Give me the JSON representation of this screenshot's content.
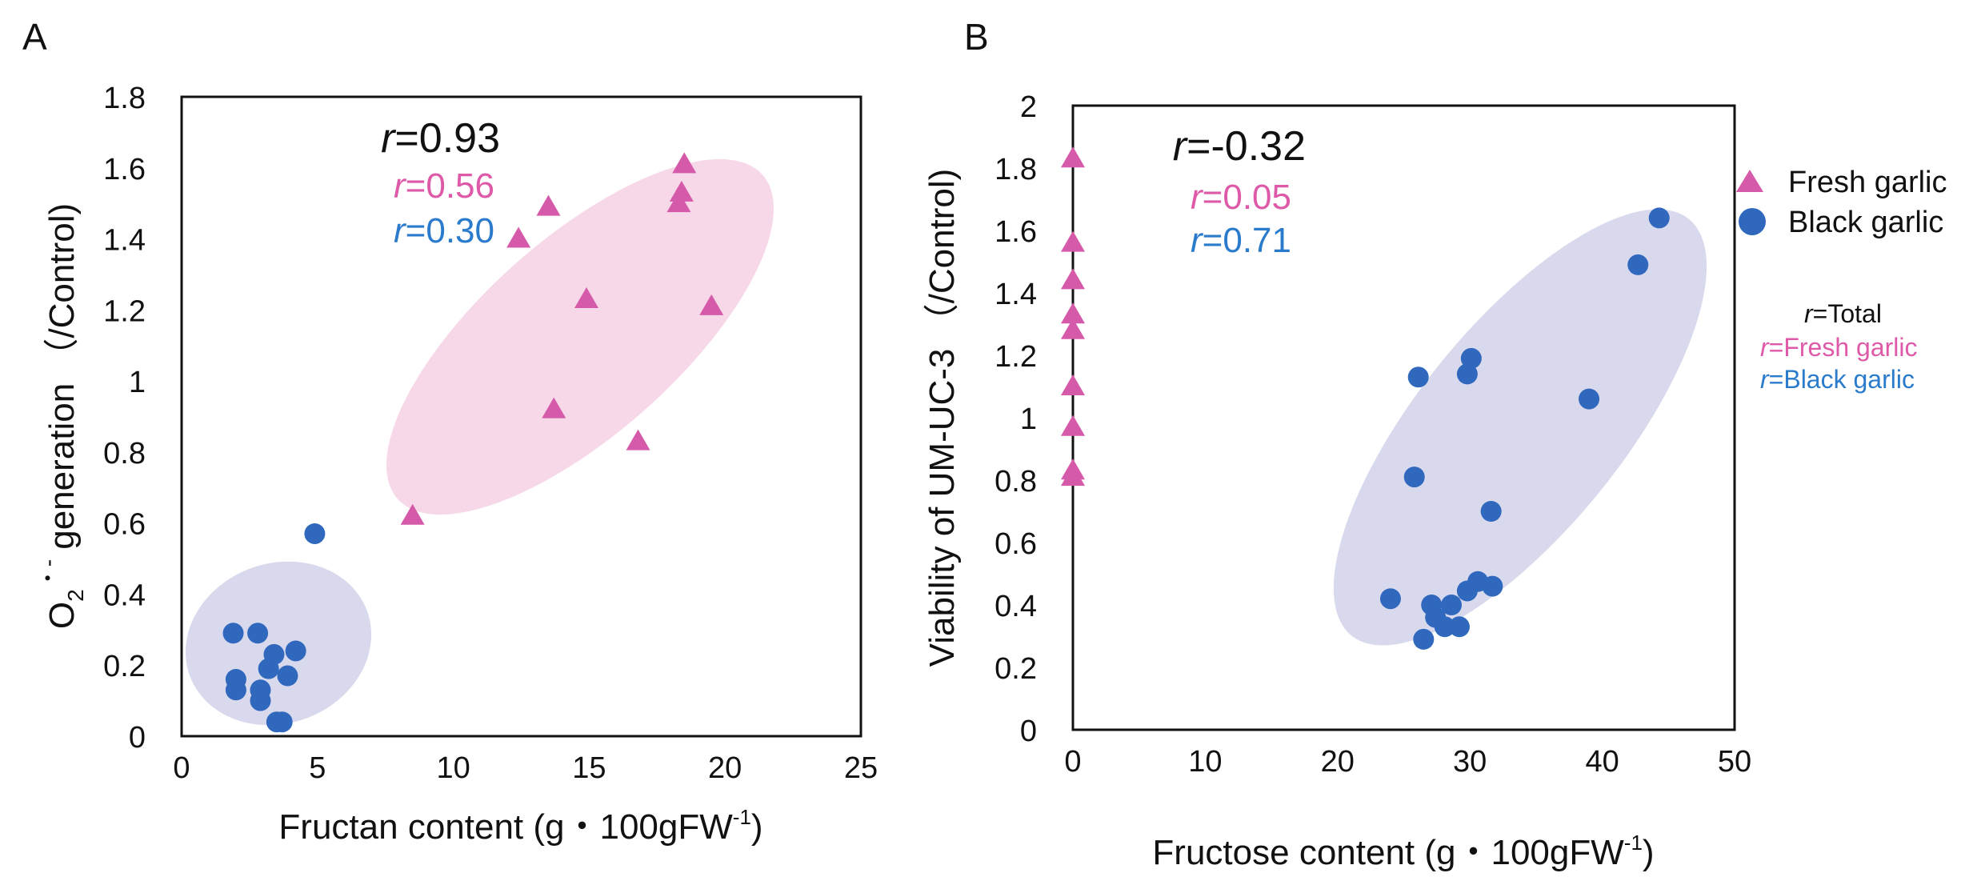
{
  "colors": {
    "fresh": "#d65aaa",
    "black": "#2f68bd",
    "fresh_ellipse": "#f7d8e8",
    "black_ellipse": "#d9d9ee",
    "r_fresh_text": "#de5aa8",
    "r_black_text": "#2b7bcc"
  },
  "legend": {
    "fresh_label": "Fresh garlic",
    "black_label": "Black garlic",
    "r_italic": "r",
    "r_total": "=Total",
    "r_fresh": "=Fresh garlic",
    "r_black": "=Black garlic"
  },
  "chart_data": [
    {
      "panel": "A",
      "type": "scatter",
      "xlabel": {
        "text": "Fructan content (g・100gFW",
        "sup": "-1",
        "end": ")"
      },
      "ylabel": {
        "pre": "O",
        "sub": "2",
        "sup": "・-",
        "text": " generation （/Control)"
      },
      "xlim": [
        0,
        25
      ],
      "ylim": [
        0,
        1.8
      ],
      "xticks": [
        "0",
        "5",
        "10",
        "15",
        "20",
        "25"
      ],
      "yticks": [
        "0",
        "0.2",
        "0.4",
        "0.6",
        "0.8",
        "1",
        "1.2",
        "1.4",
        "1.6",
        "1.8"
      ],
      "annotations": {
        "r_italic": "r",
        "total": "=0.93",
        "fresh": "=0.56",
        "black": "=0.30"
      },
      "series": [
        {
          "name": "Fresh garlic",
          "marker": "triangle",
          "x": [
            18.5,
            18.4,
            18.3,
            13.5,
            12.4,
            14.9,
            19.5,
            13.7,
            16.8,
            8.5
          ],
          "y": [
            1.61,
            1.53,
            1.5,
            1.49,
            1.4,
            1.23,
            1.21,
            0.92,
            0.83,
            0.62
          ]
        },
        {
          "name": "Black garlic",
          "marker": "circle",
          "x": [
            4.9,
            1.9,
            2.8,
            4.2,
            3.4,
            3.2,
            3.9,
            2.0,
            2.0,
            2.9,
            2.9,
            3.5,
            3.7
          ],
          "y": [
            0.57,
            0.29,
            0.29,
            0.24,
            0.23,
            0.19,
            0.17,
            0.16,
            0.13,
            0.13,
            0.1,
            0.04,
            0.04
          ]
        }
      ]
    },
    {
      "panel": "B",
      "type": "scatter",
      "xlabel": {
        "text": "Fructose content (g・100gFW",
        "sup": "-1",
        "end": ")"
      },
      "ylabel": {
        "text": "Viability  of UM-UC-3 （/Control)"
      },
      "xlim": [
        0,
        50
      ],
      "ylim": [
        0,
        2
      ],
      "xticks": [
        "0",
        "10",
        "20",
        "30",
        "40",
        "50"
      ],
      "yticks": [
        "0",
        "0.2",
        "0.4",
        "0.6",
        "0.8",
        "1",
        "1.2",
        "1.4",
        "1.6",
        "1.8",
        "2"
      ],
      "annotations": {
        "r_italic": "r",
        "total": "=-0.32",
        "fresh": "=0.05",
        "black": "=0.71"
      },
      "series": [
        {
          "name": "Fresh garlic",
          "marker": "triangle",
          "x": [
            0,
            0,
            0,
            0,
            0,
            0,
            0,
            0,
            0
          ],
          "y": [
            1.83,
            1.56,
            1.44,
            1.33,
            1.28,
            1.1,
            0.97,
            0.83,
            0.81
          ]
        },
        {
          "name": "Black garlic",
          "marker": "circle",
          "x": [
            44.3,
            42.7,
            39.0,
            30.1,
            29.8,
            26.1,
            25.8,
            31.6,
            24.0,
            30.6,
            31.7,
            29.8,
            28.6,
            27.1,
            27.4,
            28.1,
            29.2,
            26.5
          ],
          "y": [
            1.64,
            1.49,
            1.06,
            1.19,
            1.14,
            1.13,
            0.81,
            0.7,
            0.42,
            0.475,
            0.46,
            0.445,
            0.4,
            0.4,
            0.36,
            0.33,
            0.33,
            0.29
          ]
        }
      ]
    }
  ]
}
